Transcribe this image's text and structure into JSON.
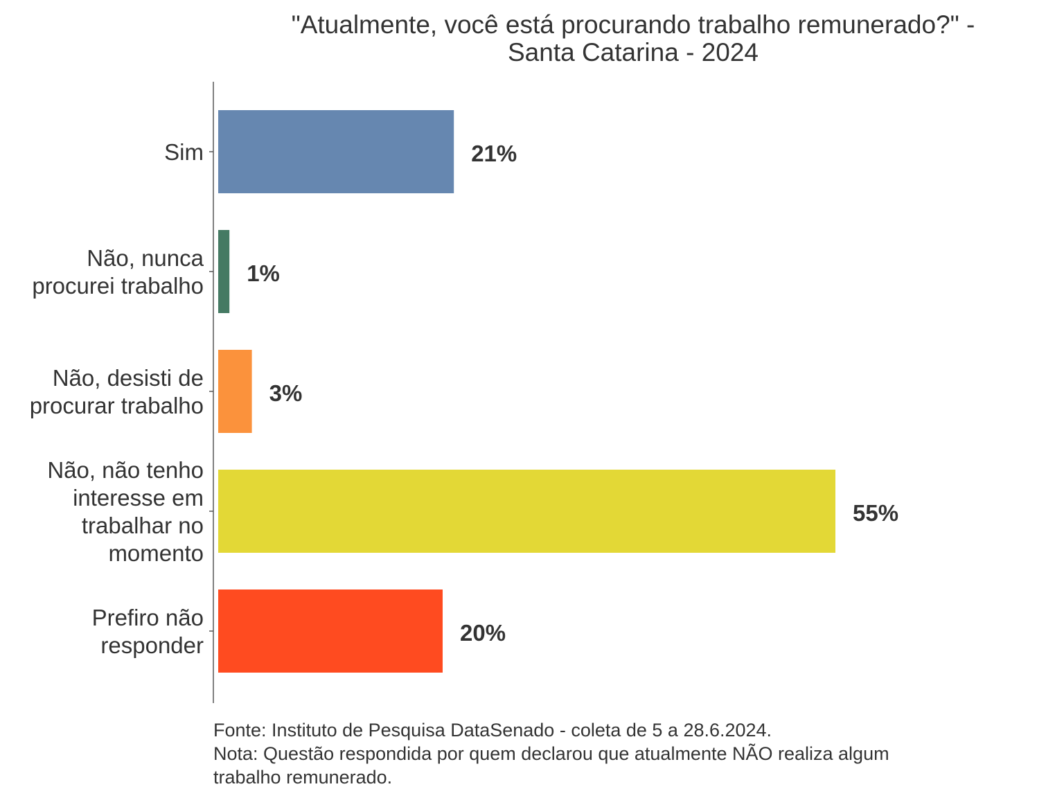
{
  "chart_data": {
    "type": "bar",
    "orientation": "horizontal",
    "title": "\"Atualmente, você está procurando trabalho remunerado?\" - Santa Catarina - 2024",
    "title_lines": [
      "\"Atualmente, você está procurando trabalho remunerado?\" -",
      "Santa Catarina - 2024"
    ],
    "categories": [
      "Sim",
      "Não, nunca procurei trabalho",
      "Não, desisti de procurar trabalho",
      "Não, não tenho interesse em trabalhar no momento",
      "Prefiro não responder"
    ],
    "category_lines": [
      [
        "Sim"
      ],
      [
        "Não, nunca",
        "procurei trabalho"
      ],
      [
        "Não, desisti de",
        "procurar trabalho"
      ],
      [
        "Não, não tenho",
        "interesse em",
        "trabalhar no",
        "momento"
      ],
      [
        "Prefiro não",
        "responder"
      ]
    ],
    "values": [
      21,
      1,
      3,
      55,
      20
    ],
    "value_labels": [
      "21%",
      "1%",
      "3%",
      "55%",
      "20%"
    ],
    "colors": [
      "#6687b0",
      "#457a63",
      "#fb923c",
      "#e3d836",
      "#ff4b20"
    ],
    "xlabel": "",
    "ylabel": "",
    "xlim": [
      0,
      60
    ],
    "grid": false,
    "legend": "none",
    "footer_lines": [
      "Fonte: Instituto de Pesquisa DataSenado - coleta de 5 a 28.6.2024.",
      "Nota: Questão respondida por quem declarou que atualmente NÃO realiza algum",
      "trabalho remunerado."
    ]
  }
}
